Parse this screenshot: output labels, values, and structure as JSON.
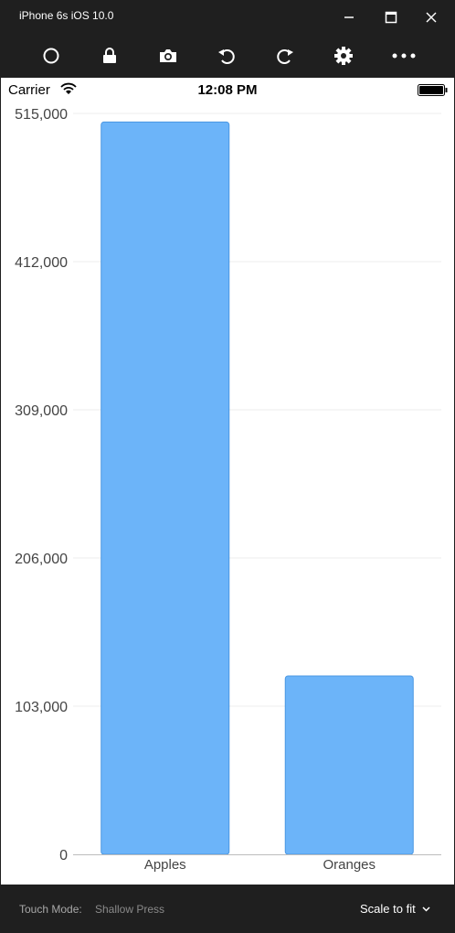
{
  "window": {
    "title": "iPhone 6s iOS 10.0"
  },
  "toolbar": {
    "icons": [
      "home-icon",
      "lock-icon",
      "camera-icon",
      "rotate-left-icon",
      "rotate-right-icon",
      "gear-icon",
      "more-icon"
    ]
  },
  "status_bar": {
    "carrier": "Carrier",
    "time": "12:08 PM"
  },
  "chart_data": {
    "type": "bar",
    "categories": [
      "Apples",
      "Oranges"
    ],
    "values": [
      509000,
      124000
    ],
    "ylim": [
      0,
      515000
    ],
    "yticks": [
      0,
      103000,
      206000,
      309000,
      412000,
      515000
    ],
    "ytick_labels": [
      "0",
      "103,000",
      "206,000",
      "309,000",
      "412,000",
      "515,000"
    ],
    "bar_color": "#6cb4f9",
    "bar_border_color": "#4a97e2",
    "grid": true,
    "legend": "none",
    "title": "",
    "xlabel": "",
    "ylabel": ""
  },
  "bottom_bar": {
    "touch_mode_label": "Touch Mode:",
    "touch_mode_value": "Shallow Press",
    "scale_label": "Scale to fit"
  }
}
